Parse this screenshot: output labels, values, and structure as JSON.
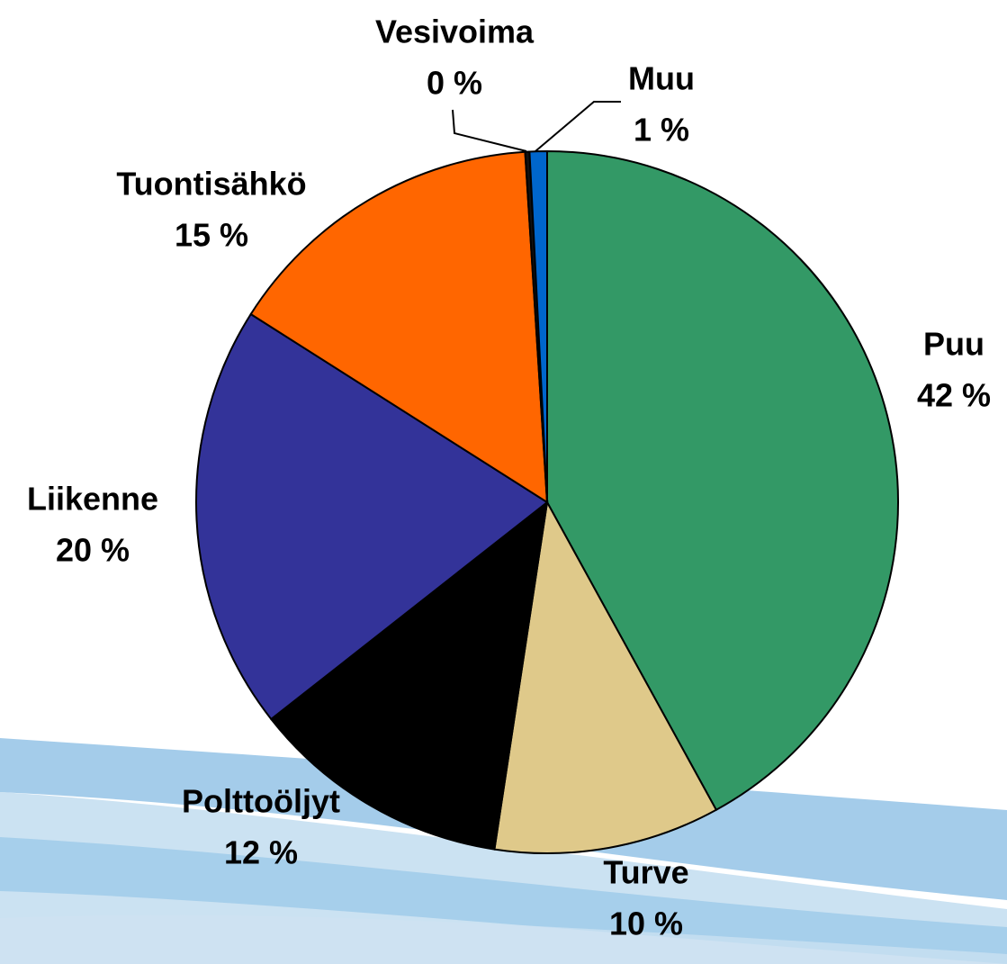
{
  "chart_data": {
    "type": "pie",
    "categories": [
      "Puu",
      "Turve",
      "Polttoöljyt",
      "Liikenne",
      "Tuontisähkö",
      "Vesivoima",
      "Muu"
    ],
    "values": [
      42,
      10.4,
      12,
      19.6,
      15,
      0.2,
      0.8
    ],
    "value_labels": [
      "42 %",
      "10 %",
      "12 %",
      "20 %",
      "15 %",
      "0 %",
      "1 %"
    ],
    "colors": [
      "#339966",
      "#dfc98a",
      "#000000",
      "#333399",
      "#ff6600",
      "#111111",
      "#0066cc"
    ]
  }
}
